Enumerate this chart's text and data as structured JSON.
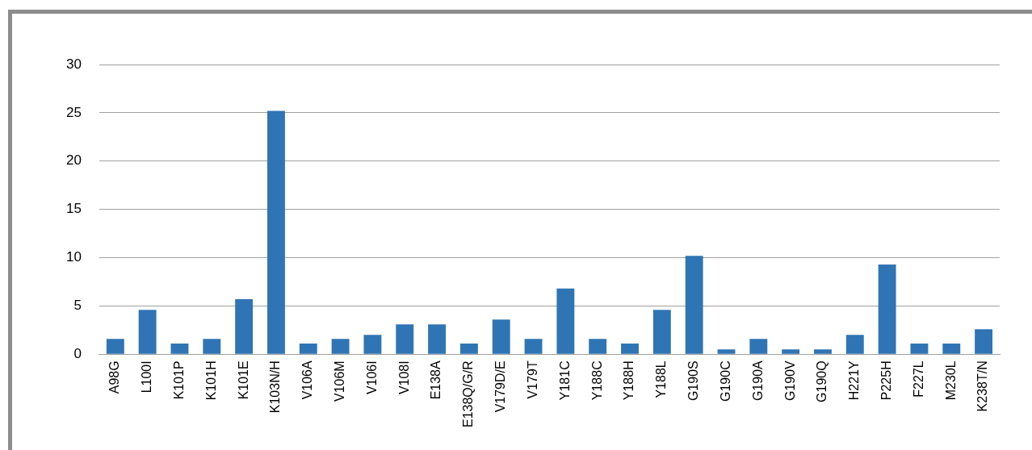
{
  "chart_data": {
    "type": "bar",
    "categories": [
      "A98G",
      "L100I",
      "K101P",
      "K101H",
      "K101E",
      "K103N/H",
      "V106A",
      "V106M",
      "V106I",
      "V108I",
      "E138A",
      "E138Q/G/R",
      "V179D/E",
      "V179T",
      "Y181C",
      "Y188C",
      "Y188H",
      "Y188L",
      "G190S",
      "G190C",
      "G190A",
      "G190V",
      "G190Q",
      "H221Y",
      "P225H",
      "F227L",
      "M230L",
      "K238T/N"
    ],
    "values": [
      1.6,
      4.6,
      1.1,
      1.6,
      5.7,
      25.2,
      1.1,
      1.6,
      2.0,
      3.1,
      3.1,
      1.1,
      3.6,
      1.6,
      6.8,
      1.6,
      1.1,
      4.6,
      10.2,
      0.5,
      1.6,
      0.5,
      0.5,
      2.0,
      9.3,
      1.1,
      1.1,
      2.6
    ],
    "color": "#2f75b5",
    "ylim": [
      0,
      30
    ],
    "yticks": [
      0,
      5,
      10,
      15,
      20,
      25,
      30
    ],
    "grid": "y",
    "legend": false
  }
}
